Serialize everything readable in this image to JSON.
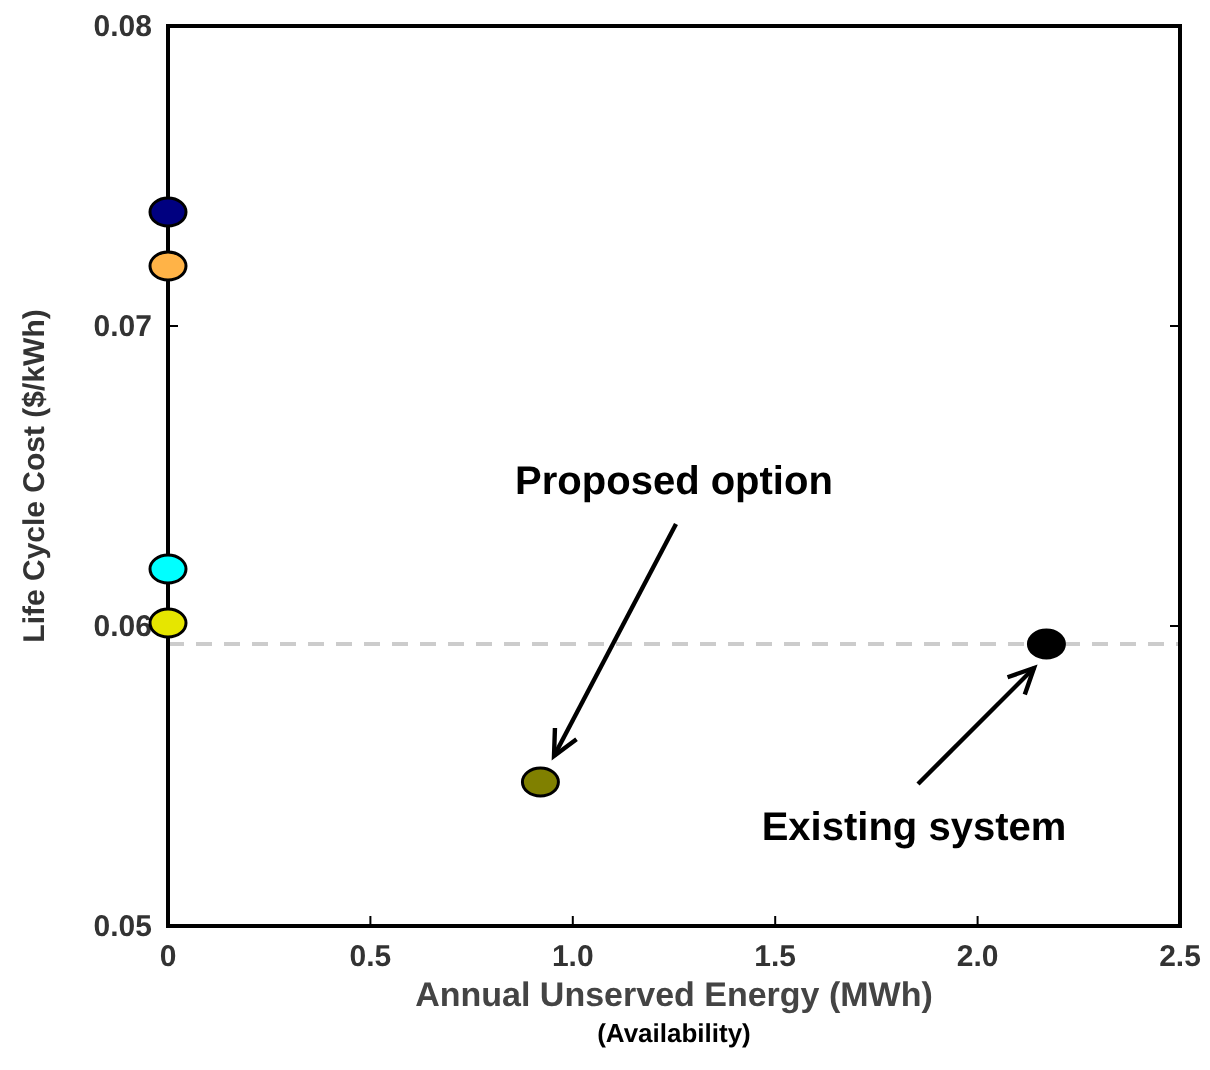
{
  "chart_data": {
    "type": "scatter",
    "xlabel": "Annual Unserved Energy (MWh)",
    "ylabel": "Life Cycle Cost ($/kWh)",
    "x": [
      0,
      0,
      0,
      0,
      0.92,
      2.17
    ],
    "series": [
      {
        "values": [
          0.0738,
          0.072,
          0.0619,
          0.0601,
          0.0548,
          0.0594
        ],
        "colors": [
          "#000080",
          "#ffb347",
          "#00ffff",
          "#e6e600",
          "#808000",
          "#000000"
        ]
      }
    ],
    "xlim": [
      0,
      2.5
    ],
    "ylim": [
      0.05,
      0.08
    ],
    "xticks": [
      0,
      0.5,
      {
        "value": 1,
        "label": "1.0"
      },
      1.5,
      {
        "value": 2,
        "label": "2.0"
      },
      2.5
    ],
    "yticks": [
      0.05,
      0.06,
      0.07,
      0.08
    ],
    "ref_lines": [
      {
        "axis": "y",
        "value": 0.0594,
        "color": "#cccccc",
        "line_style": "dashed"
      }
    ],
    "annotations": [
      "Proposed option",
      "Existing system",
      "(Availability)"
    ],
    "marker": "circle",
    "grid": false
  }
}
